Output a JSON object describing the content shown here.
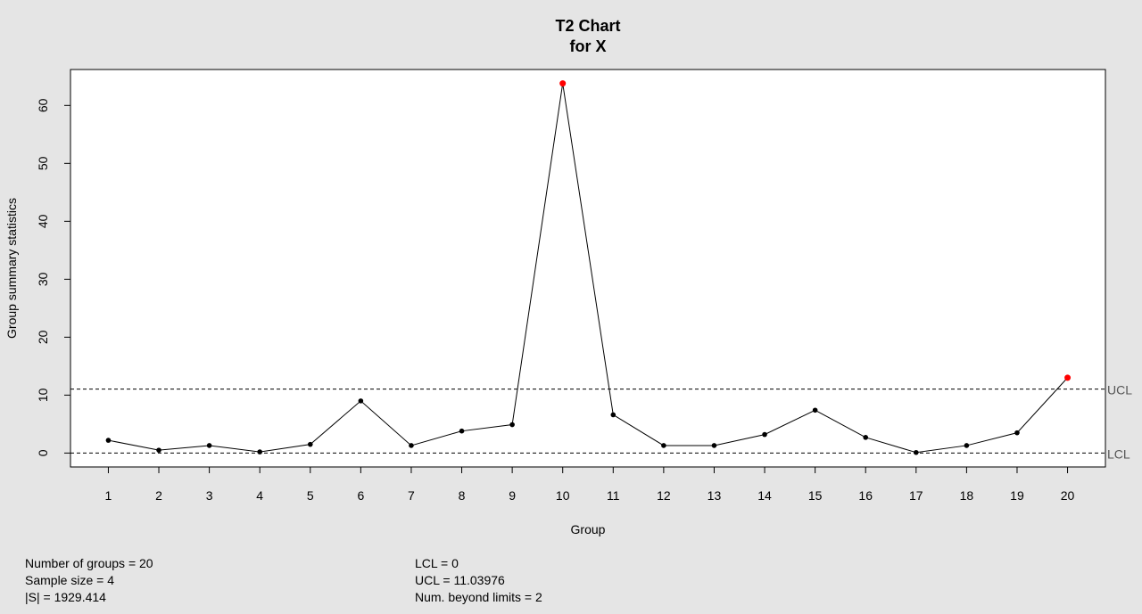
{
  "chart_data": {
    "type": "line",
    "title": "T2 Chart",
    "subtitle": "for X",
    "xlabel": "Group",
    "ylabel": "Group summary statistics",
    "x": [
      1,
      2,
      3,
      4,
      5,
      6,
      7,
      8,
      9,
      10,
      11,
      12,
      13,
      14,
      15,
      16,
      17,
      18,
      19,
      20
    ],
    "series": [
      {
        "values": [
          2.2,
          0.5,
          1.3,
          0.2,
          1.5,
          9.0,
          1.3,
          3.8,
          4.9,
          63.8,
          6.6,
          1.3,
          1.3,
          3.2,
          7.4,
          2.7,
          0.1,
          1.3,
          3.5,
          13.0
        ]
      }
    ],
    "out_of_control_groups": [
      10,
      20
    ],
    "ucl": 11.03976,
    "lcl": 0,
    "limit_labels": {
      "ucl": "UCL",
      "lcl": "LCL"
    },
    "x_ticks": [
      "1",
      "2",
      "3",
      "4",
      "5",
      "6",
      "7",
      "8",
      "9",
      "10",
      "11",
      "12",
      "13",
      "14",
      "15",
      "16",
      "17",
      "18",
      "19",
      "20"
    ],
    "y_ticks": [
      0,
      10,
      20,
      30,
      40,
      50,
      60
    ],
    "xlim": [
      0.25,
      20.75
    ],
    "ylim": [
      -2.4,
      66.2
    ],
    "grid": false,
    "point_color": "#000000",
    "violation_color": "#ff0000"
  },
  "stats": {
    "left": [
      "Number of groups = 20",
      "Sample size = 4",
      "|S| = 1929.414"
    ],
    "right": [
      "LCL = 0",
      "UCL = 11.03976",
      "Num. beyond limits = 2"
    ]
  }
}
